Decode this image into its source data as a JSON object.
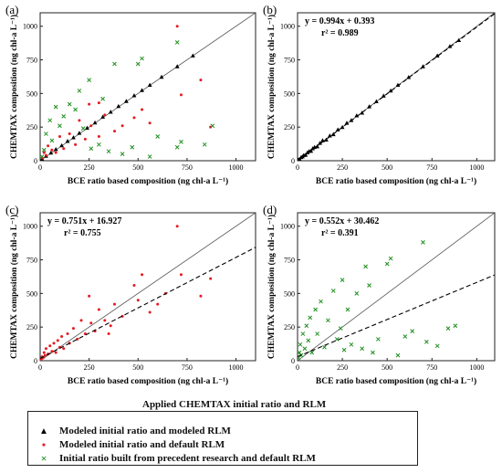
{
  "chart_data": [
    {
      "panel_label": "(a)",
      "type": "scatter",
      "xlabel": "BCE ratio based composition (ng chl-a L⁻¹)",
      "ylabel": "CHEMTAX composition (ng chl-a L⁻¹)",
      "xlim": [
        0,
        1100
      ],
      "ylim": [
        0,
        1100
      ],
      "xticks": [
        0,
        250,
        500,
        750,
        1000
      ],
      "yticks": [
        0,
        250,
        500,
        750,
        1000
      ],
      "one_to_one_line": true,
      "regression": null,
      "equation": "",
      "r2": "",
      "series": [
        {
          "marker": "triangle",
          "color": "#000000",
          "points": [
            [
              10,
              12
            ],
            [
              30,
              34
            ],
            [
              55,
              58
            ],
            [
              80,
              84
            ],
            [
              110,
              112
            ],
            [
              140,
              145
            ],
            [
              170,
              172
            ],
            [
              200,
              205
            ],
            [
              240,
              243
            ],
            [
              280,
              282
            ],
            [
              320,
              325
            ],
            [
              360,
              362
            ],
            [
              400,
              404
            ],
            [
              440,
              442
            ],
            [
              480,
              484
            ],
            [
              520,
              523
            ],
            [
              560,
              562
            ],
            [
              620,
              622
            ],
            [
              700,
              700
            ],
            [
              780,
              780
            ]
          ]
        },
        {
          "marker": "dot",
          "color": "#e8191f",
          "points": [
            [
              10,
              20
            ],
            [
              20,
              60
            ],
            [
              30,
              40
            ],
            [
              40,
              110
            ],
            [
              60,
              80
            ],
            [
              80,
              60
            ],
            [
              100,
              180
            ],
            [
              120,
              90
            ],
            [
              150,
              200
            ],
            [
              180,
              120
            ],
            [
              200,
              300
            ],
            [
              230,
              160
            ],
            [
              260,
              260
            ],
            [
              300,
              180
            ],
            [
              330,
              340
            ],
            [
              380,
              220
            ],
            [
              420,
              260
            ],
            [
              480,
              320
            ],
            [
              520,
              380
            ],
            [
              560,
              280
            ],
            [
              700,
              1000
            ],
            [
              720,
              490
            ],
            [
              820,
              600
            ],
            [
              870,
              250
            ],
            [
              300,
              430
            ],
            [
              250,
              420
            ]
          ]
        },
        {
          "marker": "x",
          "color": "#1f8f1f",
          "points": [
            [
              10,
              30
            ],
            [
              20,
              80
            ],
            [
              30,
              200
            ],
            [
              50,
              300
            ],
            [
              60,
              150
            ],
            [
              80,
              400
            ],
            [
              100,
              260
            ],
            [
              120,
              330
            ],
            [
              150,
              420
            ],
            [
              180,
              380
            ],
            [
              200,
              520
            ],
            [
              220,
              240
            ],
            [
              250,
              600
            ],
            [
              260,
              90
            ],
            [
              300,
              120
            ],
            [
              320,
              460
            ],
            [
              350,
              70
            ],
            [
              380,
              720
            ],
            [
              420,
              50
            ],
            [
              470,
              100
            ],
            [
              500,
              720
            ],
            [
              520,
              760
            ],
            [
              560,
              30
            ],
            [
              600,
              180
            ],
            [
              700,
              880
            ],
            [
              720,
              140
            ],
            [
              840,
              120
            ],
            [
              880,
              260
            ],
            [
              700,
              100
            ]
          ]
        }
      ]
    },
    {
      "panel_label": "(b)",
      "type": "scatter",
      "xlabel": "BCE ratio based composition (ng chl-a L⁻¹)",
      "ylabel": "CHEMTAX composition (ng chl-a L⁻¹)",
      "xlim": [
        0,
        1100
      ],
      "ylim": [
        0,
        1100
      ],
      "xticks": [
        0,
        250,
        500,
        750,
        1000
      ],
      "yticks": [
        0,
        250,
        500,
        750,
        1000
      ],
      "one_to_one_line": true,
      "regression": {
        "slope": 0.994,
        "intercept": 0.393
      },
      "equation": "y = 0.994x + 0.393",
      "r2": "r² = 0.989",
      "series": [
        {
          "marker": "triangle",
          "color": "#000000",
          "points": [
            [
              5,
              8
            ],
            [
              12,
              10
            ],
            [
              20,
              25
            ],
            [
              28,
              30
            ],
            [
              35,
              40
            ],
            [
              45,
              42
            ],
            [
              55,
              60
            ],
            [
              65,
              70
            ],
            [
              75,
              72
            ],
            [
              85,
              90
            ],
            [
              95,
              100
            ],
            [
              110,
              105
            ],
            [
              125,
              130
            ],
            [
              140,
              150
            ],
            [
              160,
              155
            ],
            [
              180,
              185
            ],
            [
              200,
              195
            ],
            [
              225,
              230
            ],
            [
              250,
              248
            ],
            [
              275,
              280
            ],
            [
              300,
              300
            ],
            [
              330,
              335
            ],
            [
              360,
              355
            ],
            [
              400,
              402
            ],
            [
              440,
              440
            ],
            [
              480,
              482
            ],
            [
              520,
              520
            ],
            [
              560,
              562
            ],
            [
              620,
              620
            ],
            [
              700,
              700
            ],
            [
              780,
              780
            ],
            [
              850,
              850
            ],
            [
              900,
              895
            ]
          ]
        }
      ]
    },
    {
      "panel_label": "(c)",
      "type": "scatter",
      "xlabel": "BCE ratio based composition (ng chl-a L⁻¹)",
      "ylabel": "CHEMTAX composition (ng chl-a L⁻¹)",
      "xlim": [
        0,
        1100
      ],
      "ylim": [
        0,
        1100
      ],
      "xticks": [
        0,
        250,
        500,
        750,
        1000
      ],
      "yticks": [
        0,
        250,
        500,
        750,
        1000
      ],
      "one_to_one_line": true,
      "regression": {
        "slope": 0.751,
        "intercept": 16.927
      },
      "equation": "y = 0.751x + 16.927",
      "r2": "r² = 0.755",
      "series": [
        {
          "marker": "dot",
          "color": "#e8191f",
          "points": [
            [
              5,
              10
            ],
            [
              10,
              30
            ],
            [
              15,
              20
            ],
            [
              20,
              60
            ],
            [
              25,
              40
            ],
            [
              30,
              90
            ],
            [
              40,
              50
            ],
            [
              50,
              110
            ],
            [
              60,
              70
            ],
            [
              70,
              130
            ],
            [
              80,
              60
            ],
            [
              90,
              150
            ],
            [
              100,
              100
            ],
            [
              110,
              180
            ],
            [
              120,
              90
            ],
            [
              140,
              200
            ],
            [
              150,
              130
            ],
            [
              170,
              240
            ],
            [
              190,
              160
            ],
            [
              210,
              300
            ],
            [
              230,
              200
            ],
            [
              260,
              280
            ],
            [
              280,
              220
            ],
            [
              300,
              380
            ],
            [
              330,
              300
            ],
            [
              360,
              260
            ],
            [
              380,
              420
            ],
            [
              420,
              330
            ],
            [
              480,
              560
            ],
            [
              500,
              450
            ],
            [
              520,
              640
            ],
            [
              560,
              360
            ],
            [
              600,
              420
            ],
            [
              640,
              500
            ],
            [
              700,
              1000
            ],
            [
              720,
              640
            ],
            [
              820,
              480
            ],
            [
              870,
              610
            ],
            [
              350,
              200
            ],
            [
              250,
              480
            ]
          ]
        }
      ]
    },
    {
      "panel_label": "(d)",
      "type": "scatter",
      "xlabel": "BCE ratio based composition (ng chl-a L⁻¹)",
      "ylabel": "CHEMTAX composition (ng chl-a L⁻¹)",
      "xlim": [
        0,
        1100
      ],
      "ylim": [
        0,
        1100
      ],
      "xticks": [
        0,
        250,
        500,
        750,
        1000
      ],
      "yticks": [
        0,
        250,
        500,
        750,
        1000
      ],
      "one_to_one_line": true,
      "regression": {
        "slope": 0.552,
        "intercept": 30.462
      },
      "equation": "y = 0.552x + 30.462",
      "r2": "r² = 0.391",
      "series": [
        {
          "marker": "x",
          "color": "#1f8f1f",
          "points": [
            [
              5,
              20
            ],
            [
              10,
              60
            ],
            [
              15,
              120
            ],
            [
              20,
              40
            ],
            [
              30,
              200
            ],
            [
              40,
              90
            ],
            [
              50,
              260
            ],
            [
              60,
              150
            ],
            [
              70,
              320
            ],
            [
              80,
              60
            ],
            [
              100,
              380
            ],
            [
              110,
              200
            ],
            [
              130,
              440
            ],
            [
              150,
              100
            ],
            [
              170,
              300
            ],
            [
              200,
              520
            ],
            [
              220,
              160
            ],
            [
              250,
              600
            ],
            [
              260,
              80
            ],
            [
              280,
              380
            ],
            [
              300,
              120
            ],
            [
              330,
              500
            ],
            [
              360,
              90
            ],
            [
              380,
              700
            ],
            [
              420,
              60
            ],
            [
              450,
              160
            ],
            [
              500,
              720
            ],
            [
              520,
              760
            ],
            [
              560,
              40
            ],
            [
              600,
              180
            ],
            [
              640,
              220
            ],
            [
              700,
              880
            ],
            [
              720,
              140
            ],
            [
              780,
              110
            ],
            [
              840,
              240
            ],
            [
              880,
              260
            ],
            [
              400,
              560
            ],
            [
              240,
              240
            ]
          ]
        }
      ]
    }
  ],
  "legend": {
    "title": "Applied CHEMTAX initial ratio and RLM",
    "items": [
      {
        "marker": "triangle",
        "color": "#000000",
        "label": "Modeled initial ratio and modeled RLM"
      },
      {
        "marker": "dot",
        "color": "#e8191f",
        "label": "Modeled initial ratio and default RLM"
      },
      {
        "marker": "x",
        "color": "#1f8f1f",
        "label": "Initial ratio built from precedent research and default RLM"
      }
    ]
  }
}
